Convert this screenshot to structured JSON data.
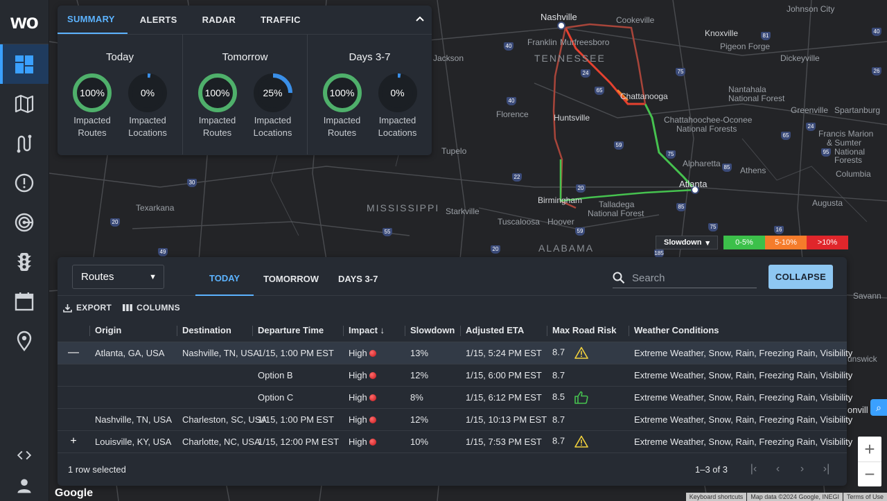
{
  "brand": {
    "logo_text": "wo"
  },
  "sidebar": {
    "items": [
      {
        "name": "dashboard",
        "icon": "dashboard-icon",
        "active": true
      },
      {
        "name": "map",
        "icon": "map-icon"
      },
      {
        "name": "routes",
        "icon": "route-icon"
      },
      {
        "name": "alerts",
        "icon": "alert-icon"
      },
      {
        "name": "radar",
        "icon": "radar-icon"
      },
      {
        "name": "traffic",
        "icon": "traffic-light-icon"
      },
      {
        "name": "calendar",
        "icon": "calendar-icon"
      },
      {
        "name": "locations",
        "icon": "location-pin-icon"
      }
    ],
    "bottom": [
      {
        "name": "embed",
        "icon": "code-icon"
      },
      {
        "name": "account",
        "icon": "user-icon"
      }
    ]
  },
  "summary": {
    "tabs": [
      "SUMMARY",
      "ALERTS",
      "RADAR",
      "TRAFFIC"
    ],
    "active_tab": "SUMMARY",
    "columns": [
      {
        "title": "Today",
        "gauges": [
          {
            "value": "100%",
            "fraction": 1.0,
            "label1": "Impacted",
            "label2": "Routes"
          },
          {
            "value": "0%",
            "fraction": 0.0,
            "label1": "Impacted",
            "label2": "Locations"
          }
        ]
      },
      {
        "title": "Tomorrow",
        "gauges": [
          {
            "value": "100%",
            "fraction": 1.0,
            "label1": "Impacted",
            "label2": "Routes"
          },
          {
            "value": "25%",
            "fraction": 0.25,
            "label1": "Impacted",
            "label2": "Locations"
          }
        ]
      },
      {
        "title": "Days 3-7",
        "gauges": [
          {
            "value": "100%",
            "fraction": 1.0,
            "label1": "Impacted",
            "label2": "Routes"
          },
          {
            "value": "0%",
            "fraction": 0.0,
            "label1": "Impacted",
            "label2": "Locations"
          }
        ]
      }
    ]
  },
  "map": {
    "labels": {
      "nashville": "Nashville",
      "cookeville": "Cookeville",
      "johnson_city": "Johnson City",
      "knoxville": "Knoxville",
      "pigeon_forge": "Pigeon Forge",
      "dickeyville": "Dickeyville",
      "franklin": "Franklin",
      "murfreesboro": "Murfreesboro",
      "jackson": "Jackson",
      "tennessee": "TENNESSEE",
      "chattanooga": "Chattanooga",
      "nantahala": "Nantahala",
      "nantahala2": "National Forest",
      "greenville": "Greenville",
      "spartanburg": "Spartanburg",
      "florence": "Florence",
      "huntsville": "Huntsville",
      "chatt_oconee": "Chattahoochee-Oconee",
      "chatt_oconee2": "National Forests",
      "francis_marion": "Francis Marion",
      "sumter": "& Sumter",
      "national": "National",
      "forests": "Forests",
      "tupelo": "Tupelo",
      "alpharetta": "Alpharetta",
      "athens": "Athens",
      "columbia": "Columbia",
      "atlanta": "Atlanta",
      "texarkana": "Texarkana",
      "mississippi": "MISSISSIPPI",
      "starkville": "Starkville",
      "birmingham": "Birmingham",
      "talladega": "Talladega",
      "talladega2": "National Forest",
      "augusta": "Augusta",
      "tuscaloosa": "Tuscaloosa",
      "hoover": "Hoover",
      "alabama": "ALABAMA",
      "savannah": "Savann",
      "brunswick": "unswick",
      "jacksonville": "onvill"
    },
    "shields": [
      "40",
      "24",
      "81",
      "75",
      "40",
      "24",
      "26",
      "65",
      "40",
      "22",
      "59",
      "85",
      "75",
      "20",
      "49",
      "30",
      "55",
      "59",
      "20",
      "20",
      "185",
      "16",
      "95",
      "75",
      "85",
      "65"
    ],
    "legend": {
      "slowdown_label": "Slowdown",
      "ranges": [
        {
          "label": "0-5%",
          "color": "#3cc04a"
        },
        {
          "label": "5-10%",
          "color": "#f57c2b"
        },
        {
          "label": ">10%",
          "color": "#e0262b"
        }
      ]
    },
    "google": "Google",
    "attribution": [
      "Keyboard shortcuts",
      "Map data ©2024 Google, INEGI",
      "Terms of Use"
    ],
    "zoom_in": "+",
    "zoom_out": "−"
  },
  "routes": {
    "view_select": "Routes",
    "tabs": [
      "TODAY",
      "TOMORROW",
      "DAYS 3-7"
    ],
    "active_tab": "TODAY",
    "search_placeholder": "Search",
    "collapse_label": "COLLAPSE",
    "export_label": "EXPORT",
    "columns_label": "COLUMNS",
    "headers": [
      "",
      "Origin",
      "Destination",
      "Departure Time",
      "Impact",
      "Slowdown",
      "Adjusted ETA",
      "Max Road Risk",
      "Weather Conditions"
    ],
    "rows": [
      {
        "expander": "—",
        "origin": "Atlanta, GA, USA",
        "destination": "Nashville, TN, USA",
        "departure": "1/15, 1:00 PM EST",
        "impact": "High",
        "slowdown": "13%",
        "eta": "1/15, 5:24 PM EST",
        "risk": "8.7",
        "risk_icon": "warning-icon",
        "weather": "Extreme Weather, Snow, Rain, Freezing Rain, Visibility",
        "selected": true
      },
      {
        "expander": "",
        "origin": "",
        "destination": "",
        "departure": "Option B",
        "impact": "High",
        "slowdown": "12%",
        "eta": "1/15, 6:00 PM EST",
        "risk": "8.7",
        "risk_icon": "",
        "weather": "Extreme Weather, Snow, Rain, Freezing Rain, Visibility"
      },
      {
        "expander": "",
        "origin": "",
        "destination": "",
        "departure": "Option C",
        "impact": "High",
        "slowdown": "8%",
        "eta": "1/15, 6:12 PM EST",
        "risk": "8.5",
        "risk_icon": "thumbs-up-icon",
        "weather": "Extreme Weather, Snow, Rain, Freezing Rain, Visibility"
      },
      {
        "expander": "",
        "origin": "Nashville, TN, USA",
        "destination": "Charleston, SC, USA",
        "departure": "1/15, 1:00 PM EST",
        "impact": "High",
        "slowdown": "12%",
        "eta": "1/15, 10:13 PM EST",
        "risk": "8.7",
        "risk_icon": "",
        "weather": "Extreme Weather, Snow, Rain, Freezing Rain, Visibility"
      },
      {
        "expander": "+",
        "origin": "Louisville, KY, USA",
        "destination": "Charlotte, NC, USA",
        "departure": "1/15, 12:00 PM EST",
        "impact": "High",
        "slowdown": "10%",
        "eta": "1/15, 7:53 PM EST",
        "risk": "8.7",
        "risk_icon": "warning-icon",
        "weather": "Extreme Weather, Snow, Rain, Freezing Rain, Visibility"
      }
    ],
    "selection_text": "1 row selected",
    "pagination": "1–3 of 3"
  }
}
